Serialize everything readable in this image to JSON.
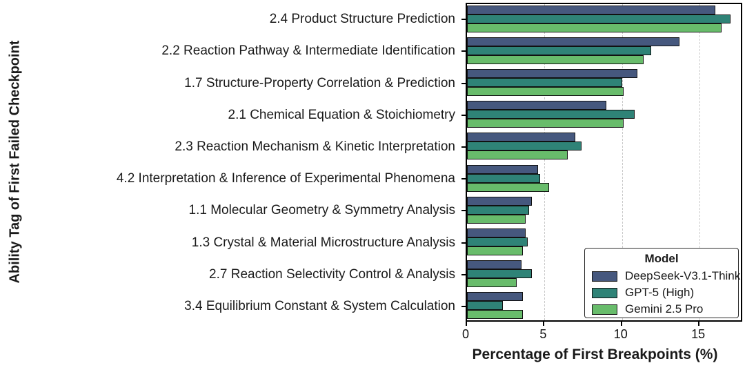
{
  "figure": {
    "xlabel": "Percentage of First Breakpoints (%)",
    "ylabel": "Ability Tag of First Failed Checkpoint",
    "legend_title": "Model"
  },
  "chart_data": {
    "type": "bar",
    "orientation": "horizontal",
    "title": "",
    "xlabel": "Percentage of First Breakpoints (%)",
    "ylabel": "Ability Tag of First Failed Checkpoint",
    "xlim": [
      0,
      17.8
    ],
    "xticks": [
      0,
      5,
      10,
      15
    ],
    "grid": {
      "axis": "x",
      "style": "dashed",
      "color": "#c9c9c9",
      "at": [
        5,
        10,
        15
      ]
    },
    "legend": {
      "title": "Model",
      "position": "lower-right"
    },
    "categories": [
      "2.4 Product Structure Prediction",
      "2.2 Reaction Pathway & Intermediate Identification",
      "1.7 Structure-Property Correlation & Prediction",
      "2.1 Chemical Equation & Stoichiometry",
      "2.3 Reaction Mechanism & Kinetic Interpretation",
      "4.2 Interpretation & Inference of Experimental Phenomena",
      "1.1 Molecular Geometry & Symmetry Analysis",
      "1.3 Crystal & Material Microstructure Analysis",
      "2.7 Reaction Selectivity Control & Analysis",
      "3.4 Equilibrium Constant & System Calculation"
    ],
    "series": [
      {
        "name": "DeepSeek-V3.1-Think",
        "color": "#46587E",
        "values": [
          16.0,
          13.7,
          11.0,
          9.0,
          7.0,
          4.6,
          4.2,
          3.8,
          3.5,
          3.6
        ]
      },
      {
        "name": "GPT-5 (High)",
        "color": "#2F8377",
        "values": [
          17.0,
          11.9,
          10.0,
          10.8,
          7.4,
          4.7,
          4.0,
          3.9,
          4.2,
          2.3
        ]
      },
      {
        "name": "Gemini 2.5 Pro",
        "color": "#68BC6B",
        "values": [
          16.4,
          11.4,
          10.1,
          10.1,
          6.5,
          5.3,
          3.8,
          3.6,
          3.2,
          3.6
        ]
      }
    ],
    "bar_edge_color": "#111111"
  }
}
